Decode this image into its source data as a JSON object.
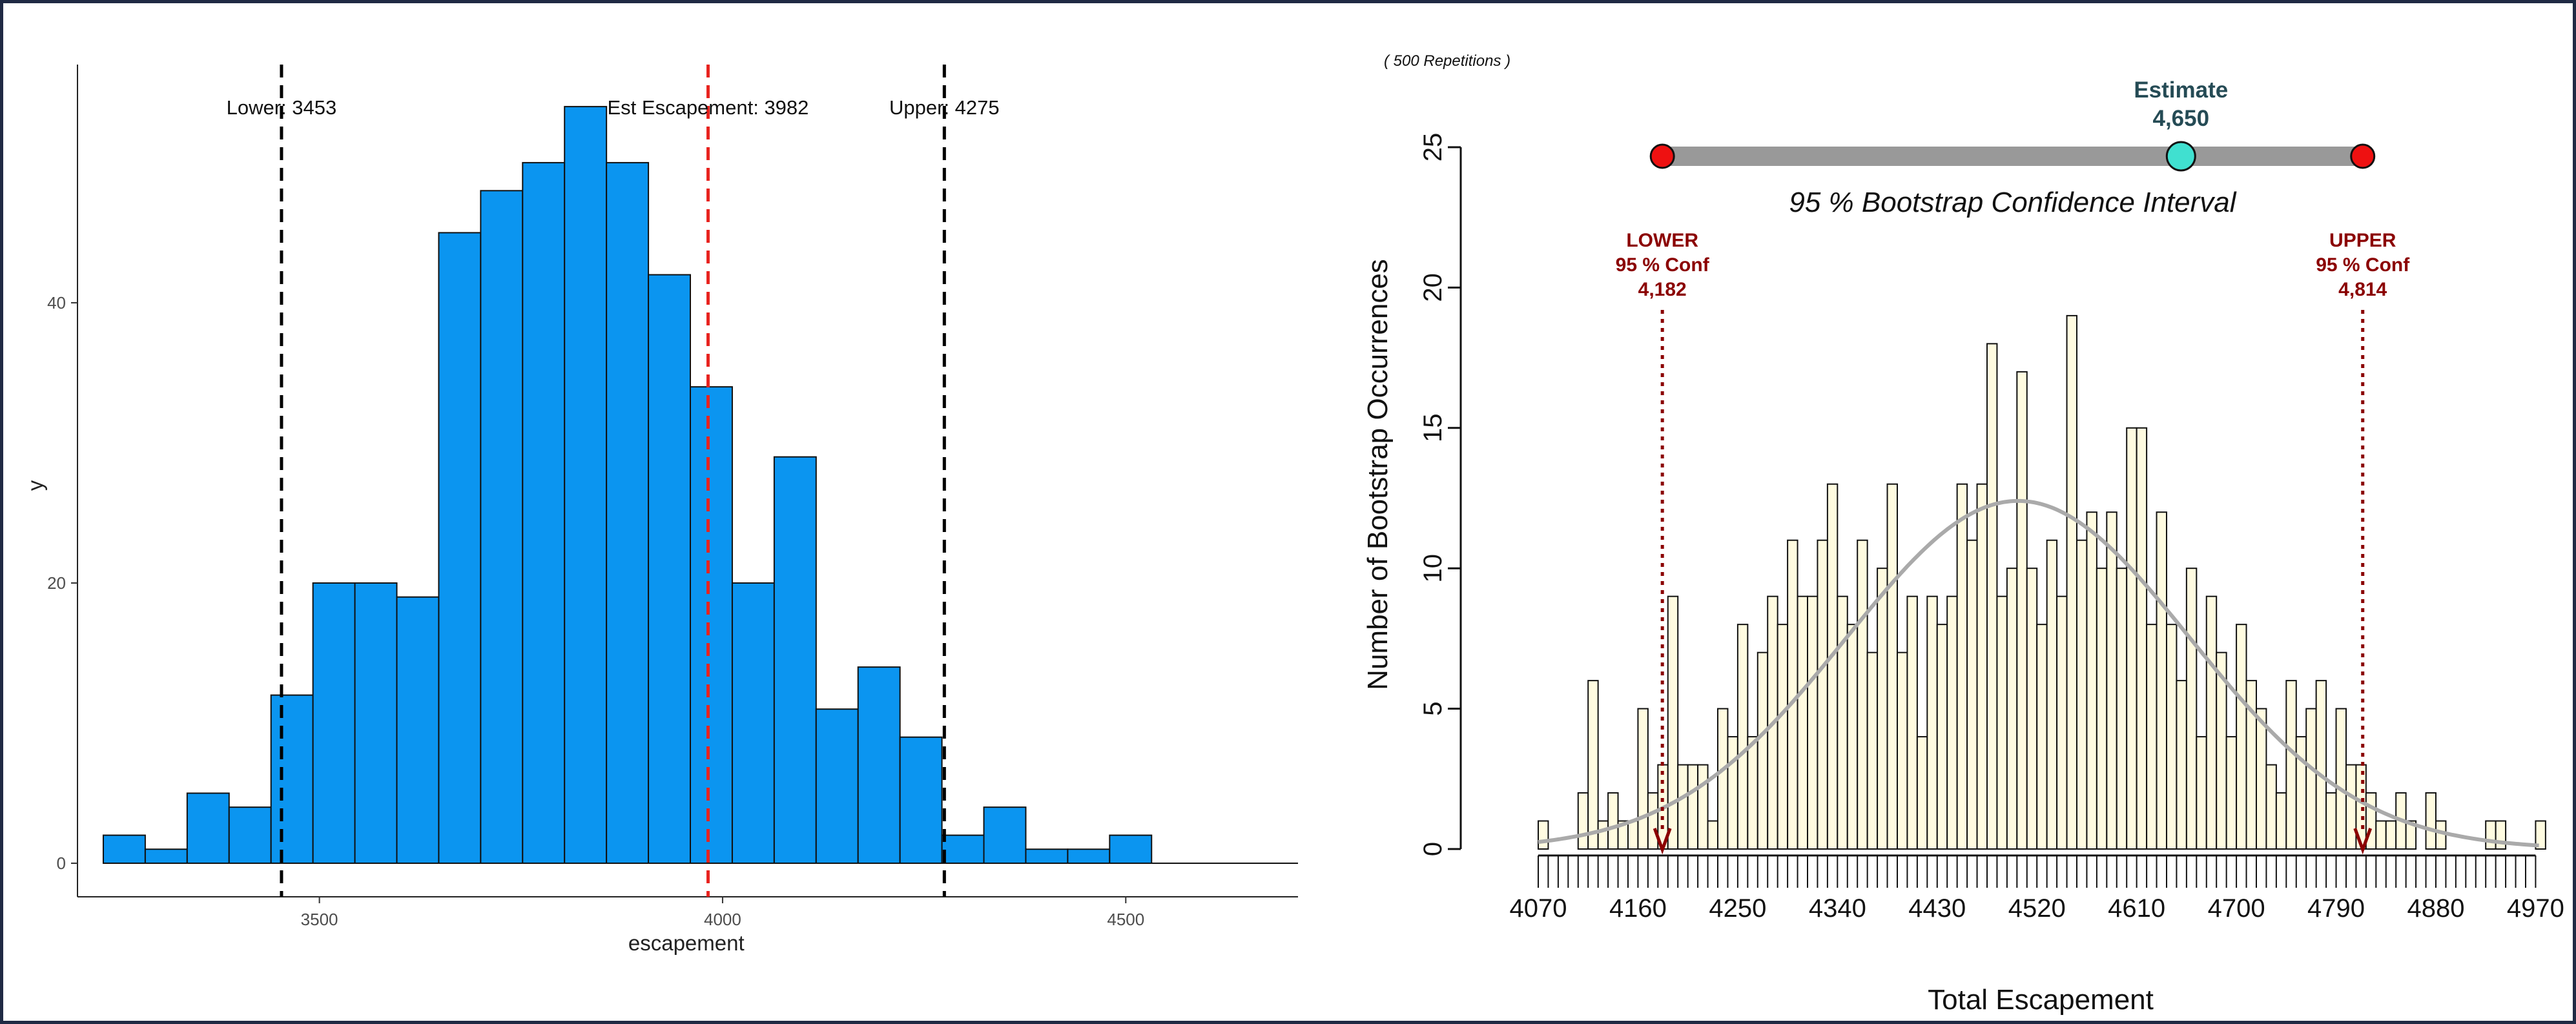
{
  "chart_data": [
    {
      "type": "bar",
      "chart_kind": "histogram",
      "xlabel": "escapement",
      "ylabel": "y",
      "xlim": [
        3200,
        4720
      ],
      "ylim": [
        0,
        57
      ],
      "x_ticks": [
        3500,
        4000,
        4500
      ],
      "y_ticks": [
        0,
        20,
        40
      ],
      "bin_width": 52,
      "bin_start": 3232,
      "values": [
        2,
        1,
        5,
        4,
        12,
        20,
        20,
        19,
        45,
        48,
        50,
        54,
        50,
        42,
        34,
        20,
        29,
        11,
        14,
        9,
        2,
        4,
        1,
        1,
        2
      ],
      "bar_color": "#0b95f0",
      "vlines": [
        {
          "x": 3453,
          "label": "Lower: 3453",
          "color": "#000000"
        },
        {
          "x": 3982,
          "label": "Est Escapement: 3982",
          "color": "#e8231f"
        },
        {
          "x": 4275,
          "label": "Upper: 4275",
          "color": "#000000"
        }
      ],
      "grid": false
    },
    {
      "type": "bar",
      "chart_kind": "histogram",
      "note": "( 500  Repetitions )",
      "xlabel": "Total Escapement",
      "ylabel": "Number of Bootstrap Occurrences",
      "xlim": [
        4070,
        4975
      ],
      "ylim": [
        0,
        25
      ],
      "x_ticks": [
        4070,
        4160,
        4250,
        4340,
        4430,
        4520,
        4610,
        4700,
        4790,
        4880,
        4970
      ],
      "y_ticks": [
        0,
        5,
        10,
        15,
        20,
        25
      ],
      "bin_width": 9,
      "bin_start": 4070,
      "values": [
        1,
        0,
        0,
        0,
        2,
        6,
        1,
        2,
        1,
        1,
        5,
        2,
        3,
        9,
        3,
        3,
        3,
        1,
        5,
        4,
        8,
        4,
        7,
        9,
        8,
        11,
        9,
        9,
        11,
        13,
        9,
        8,
        11,
        7,
        10,
        13,
        7,
        9,
        4,
        9,
        8,
        9,
        13,
        11,
        13,
        18,
        9,
        10,
        17,
        10,
        8,
        11,
        9,
        19,
        11,
        12,
        10,
        12,
        10,
        15,
        15,
        8,
        12,
        8,
        6,
        10,
        4,
        9,
        7,
        4,
        8,
        6,
        5,
        3,
        2,
        6,
        4,
        5,
        6,
        2,
        5,
        3,
        3,
        2,
        1,
        1,
        2,
        1,
        0,
        2,
        1,
        0,
        0,
        0,
        0,
        1,
        1,
        0,
        0,
        0,
        1
      ],
      "bar_color": "#fffbe0",
      "curve": {
        "mean": 4503,
        "sd": 155,
        "peak": 12.4,
        "color": "#aaaaaa"
      },
      "ci_bar": {
        "title": "95 % Bootstrap Confidence Interval",
        "lower": 4182,
        "estimate": 4650,
        "upper": 4814,
        "bar_color": "#999999",
        "end_color": "#ee1111",
        "est_color": "#40e0d0"
      },
      "estimate_label": {
        "title": "Estimate",
        "value": "4,650",
        "color": "#254b55"
      },
      "lower_label": {
        "lines": [
          "LOWER",
          "95 % Conf",
          "4,182"
        ],
        "color": "#8b0000"
      },
      "upper_label": {
        "lines": [
          "UPPER",
          "95 % Conf",
          "4,814"
        ],
        "color": "#8b0000"
      },
      "grid": false
    }
  ]
}
